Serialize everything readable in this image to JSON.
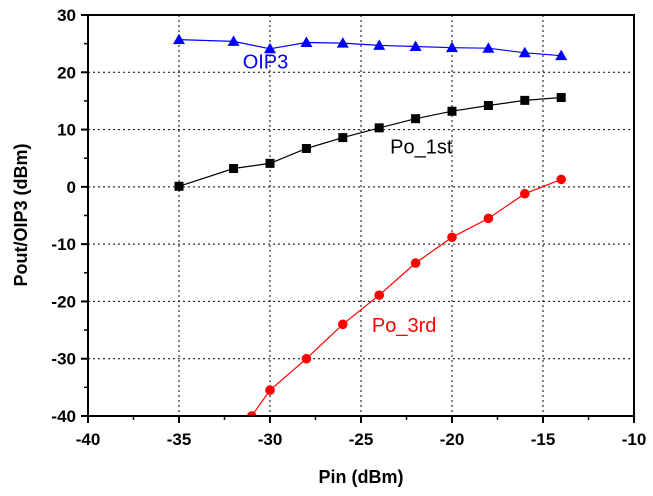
{
  "chart_data": {
    "type": "line",
    "xlabel": "Pin (dBm)",
    "ylabel": "Pout/OIP3 (dBm)",
    "xlim": [
      -40,
      -10
    ],
    "ylim": [
      -40,
      30
    ],
    "xticks": [
      -40,
      -35,
      -30,
      -25,
      -20,
      -15,
      -10
    ],
    "yticks": [
      -40,
      -30,
      -20,
      -10,
      0,
      10,
      20,
      30
    ],
    "grid": true,
    "series": [
      {
        "name": "OIP3",
        "color": "#0000ff",
        "marker": "triangle",
        "x": [
          -35,
          -32,
          -30,
          -28,
          -26,
          -24,
          -22,
          -20,
          -18,
          -16,
          -14
        ],
        "y": [
          25.7,
          25.4,
          24.1,
          25.2,
          25.1,
          24.7,
          24.5,
          24.3,
          24.2,
          23.4,
          22.9
        ]
      },
      {
        "name": "Po_1st",
        "color": "#000000",
        "marker": "square",
        "x": [
          -35,
          -32,
          -30,
          -28,
          -26,
          -24,
          -22,
          -20,
          -18,
          -16,
          -14
        ],
        "y": [
          0.1,
          3.2,
          4.1,
          6.7,
          8.6,
          10.3,
          11.9,
          13.2,
          14.2,
          15.1,
          15.6
        ]
      },
      {
        "name": "Po_3rd",
        "color": "#ff0000",
        "marker": "circle",
        "x": [
          -31,
          -30,
          -28,
          -26,
          -24,
          -22,
          -20,
          -18,
          -16,
          -14
        ],
        "y": [
          -40,
          -35.5,
          -30,
          -24,
          -18.9,
          -13.3,
          -8.8,
          -5.5,
          -1.2,
          1.3
        ]
      }
    ]
  }
}
